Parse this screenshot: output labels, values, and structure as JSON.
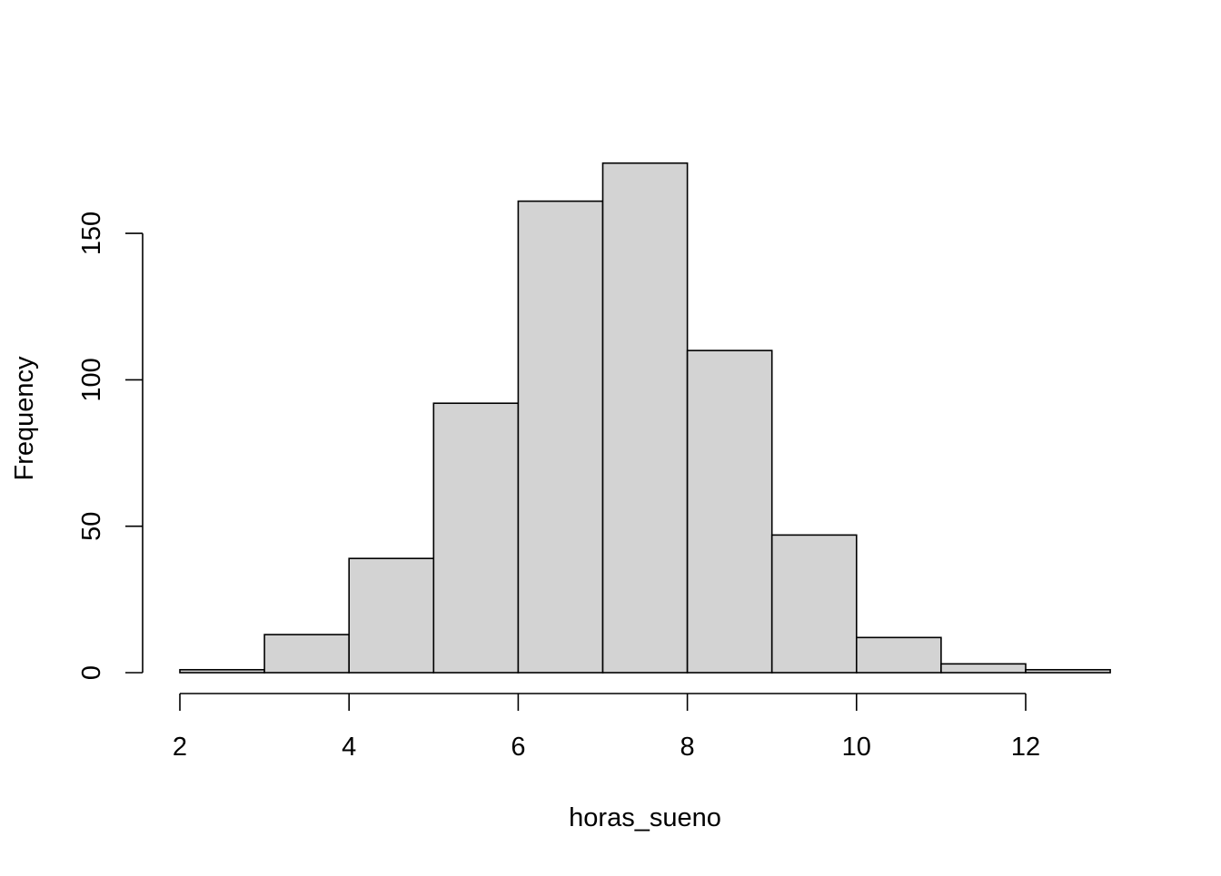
{
  "chart_data": {
    "type": "bar",
    "subtype": "histogram",
    "title": "",
    "xlabel": "horas_sueno",
    "ylabel": "Frequency",
    "bin_edges": [
      2,
      3,
      4,
      5,
      6,
      7,
      8,
      9,
      10,
      11,
      12,
      13
    ],
    "values": [
      1,
      13,
      39,
      92,
      161,
      174,
      110,
      47,
      12,
      3,
      1
    ],
    "xlim": [
      2,
      13
    ],
    "ylim": [
      0,
      174
    ],
    "x_ticks": [
      2,
      4,
      6,
      8,
      10,
      12
    ],
    "y_ticks": [
      0,
      50,
      100,
      150
    ],
    "bar_fill": "#d3d3d3",
    "bar_stroke": "#000000",
    "grid": false,
    "legend": "none"
  }
}
